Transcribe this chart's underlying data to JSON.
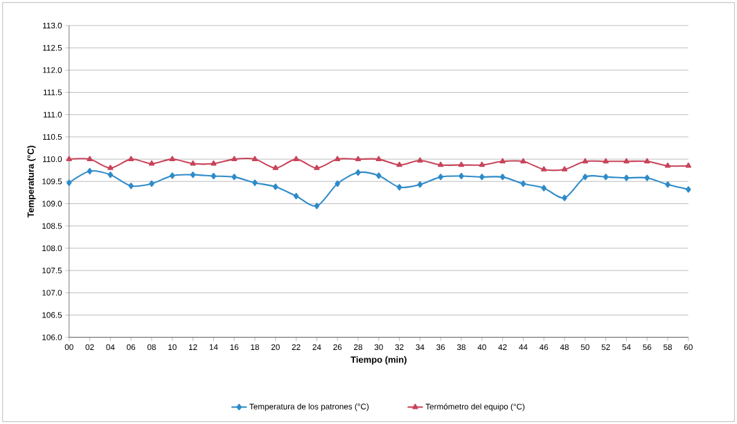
{
  "chart_data": {
    "type": "line",
    "xlabel": "Tiempo (min)",
    "ylabel": "Temperatura (°C)",
    "categories": [
      "00",
      "02",
      "04",
      "06",
      "08",
      "10",
      "12",
      "14",
      "16",
      "18",
      "20",
      "22",
      "24",
      "26",
      "28",
      "30",
      "32",
      "34",
      "36",
      "38",
      "40",
      "42",
      "44",
      "46",
      "48",
      "50",
      "52",
      "54",
      "56",
      "58",
      "60"
    ],
    "series": [
      {
        "name": "Temperatura de los patrones (°C)",
        "color": "#2e8bc9",
        "marker": "diamond",
        "values": [
          109.47,
          109.73,
          109.65,
          109.4,
          109.45,
          109.63,
          109.65,
          109.62,
          109.6,
          109.47,
          109.38,
          109.17,
          108.95,
          109.45,
          109.7,
          109.63,
          109.37,
          109.43,
          109.6,
          109.62,
          109.6,
          109.6,
          109.45,
          109.35,
          109.13,
          109.6,
          109.6,
          109.58,
          109.58,
          109.43,
          109.32
        ]
      },
      {
        "name": "Termómetro del equipo (°C)",
        "color": "#c8445a",
        "marker": "triangle",
        "values": [
          110.0,
          110.0,
          109.8,
          110.0,
          109.9,
          110.0,
          109.9,
          109.9,
          110.0,
          110.0,
          109.8,
          110.0,
          109.8,
          110.0,
          110.0,
          110.0,
          109.87,
          109.97,
          109.87,
          109.87,
          109.87,
          109.95,
          109.95,
          109.77,
          109.77,
          109.95,
          109.95,
          109.95,
          109.95,
          109.85,
          109.85
        ]
      }
    ],
    "ylim": [
      106.0,
      113.0
    ],
    "yticks": [
      {
        "value": 106,
        "label": "106.0"
      },
      {
        "value": 106.5,
        "label": "106.5"
      },
      {
        "value": 107,
        "label": "107.0"
      },
      {
        "value": 107.5,
        "label": "107.5"
      },
      {
        "value": 108,
        "label": "108.0"
      },
      {
        "value": 108.5,
        "label": "108.5"
      },
      {
        "value": 109,
        "label": "109.0"
      },
      {
        "value": 109.5,
        "label": "109.5"
      },
      {
        "value": 110,
        "label": "110.0"
      },
      {
        "value": 110.5,
        "label": "110.5"
      },
      {
        "value": 111,
        "label": "111.0"
      },
      {
        "value": 111.5,
        "label": "111.5"
      },
      {
        "value": 112,
        "label": "112.0"
      },
      {
        "value": 112.5,
        "label": "112.5"
      },
      {
        "value": 113,
        "label": "113.0"
      }
    ],
    "grid": "y",
    "legend": "bottom"
  }
}
